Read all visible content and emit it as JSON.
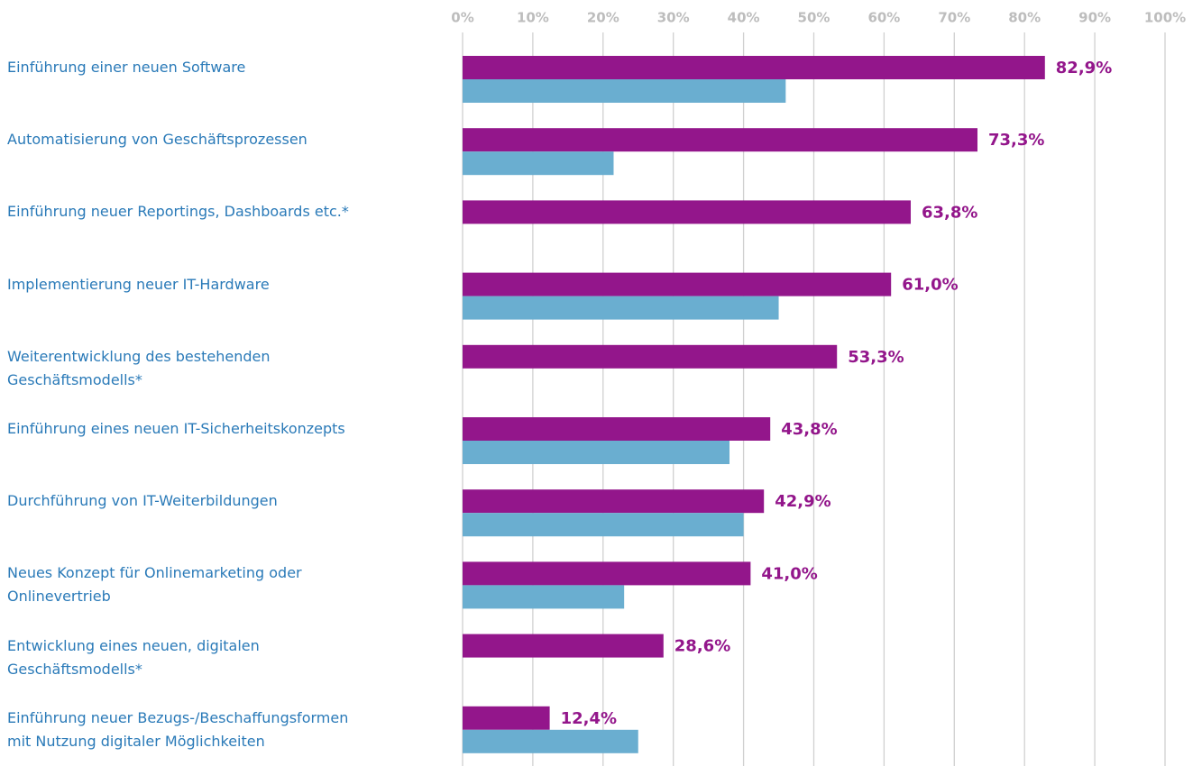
{
  "chart_data": {
    "type": "hbar",
    "categories": [
      "Einführung einer neuen Software",
      "Automatisierung von Geschäftsprozessen",
      "Einführung neuer Reportings, Dashboards etc.*",
      "Implementierung neuer IT-Hardware",
      "Weiterentwicklung des bestehenden\nGeschäftsmodells*",
      "Einführung eines neuen IT-Sicherheitskonzepts",
      "Durchführung von IT-Weiterbildungen",
      "Neues Konzept für Onlinemarketing oder\nOnlinevertrieb",
      "Entwicklung eines neuen, digitalen\nGeschäftsmodells*",
      "Einführung neuer Bezugs-/Beschaffungsformen\nmit Nutzung digitaler Möglichkeiten"
    ],
    "series": [
      {
        "color": "#93168b",
        "values": [
          82.9,
          73.3,
          63.8,
          61.0,
          53.3,
          43.8,
          42.9,
          41.0,
          28.6,
          12.4
        ],
        "value_labels": [
          "82,9%",
          "73,3%",
          "63,8%",
          "61,0%",
          "53,3%",
          "43,8%",
          "42,9%",
          "41,0%",
          "28,6%",
          "12,4%"
        ]
      },
      {
        "color": "#6aaed0",
        "values": [
          46,
          21.5,
          null,
          45,
          null,
          38,
          40,
          23,
          null,
          25
        ]
      }
    ],
    "xlim": [
      0,
      100
    ],
    "xticks": [
      {
        "value": 0,
        "label": "0%"
      },
      {
        "value": 10,
        "label": "10%"
      },
      {
        "value": 20,
        "label": "20%"
      },
      {
        "value": 30,
        "label": "30%"
      },
      {
        "value": 40,
        "label": "40%"
      },
      {
        "value": 50,
        "label": "50%"
      },
      {
        "value": 60,
        "label": "60%"
      },
      {
        "value": 70,
        "label": "70%"
      },
      {
        "value": 80,
        "label": "80%"
      },
      {
        "value": 90,
        "label": "90%"
      },
      {
        "value": 100,
        "label": "100%"
      }
    ],
    "grid": true
  }
}
